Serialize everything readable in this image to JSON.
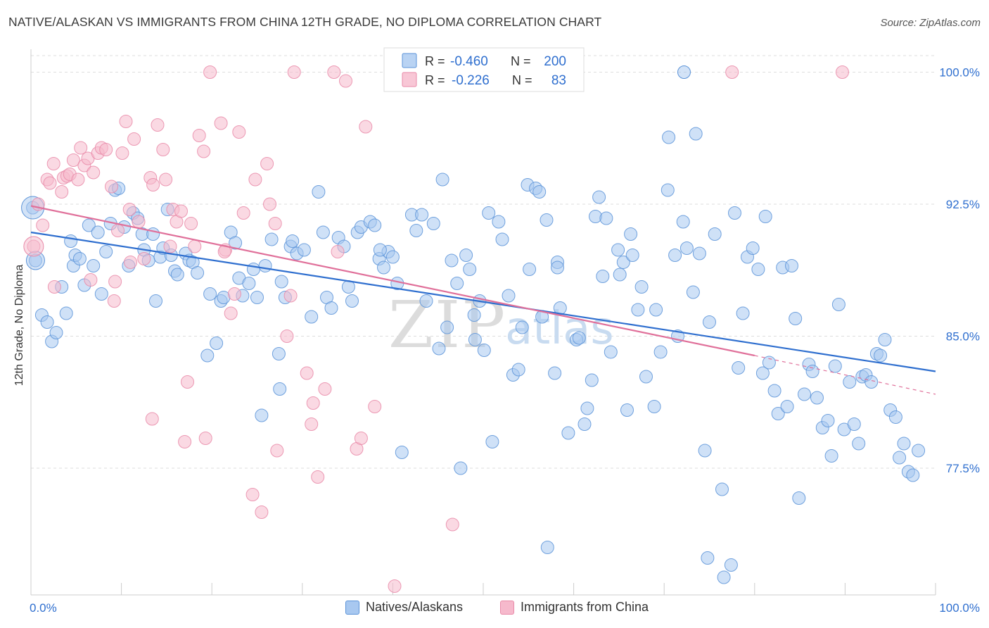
{
  "title": "NATIVE/ALASKAN VS IMMIGRANTS FROM CHINA 12TH GRADE, NO DIPLOMA CORRELATION CHART",
  "source": "Source: ZipAtlas.com",
  "watermark": {
    "zip": "ZIP",
    "atlas": "atlas"
  },
  "colors": {
    "blue_fill": "#a8c8f0",
    "blue_stroke": "#5b93d8",
    "blue_line": "#2f6fcf",
    "pink_fill": "#f6b9cc",
    "pink_stroke": "#e98aa8",
    "pink_line": "#e0709a",
    "value_text": "#2f6fcf",
    "grid": "#dddddd"
  },
  "legend_top": {
    "rows": [
      {
        "series": "Natives/Alaskans",
        "r_label": "R =",
        "r_value": "-0.460",
        "n_label": "N =",
        "n_value": "200"
      },
      {
        "series": "Immigrants from China",
        "r_label": "R =",
        "r_value": "-0.226",
        "n_label": "N =",
        "n_value": "83"
      }
    ]
  },
  "chart_data": {
    "type": "scatter",
    "title": "NATIVE/ALASKAN VS IMMIGRANTS FROM CHINA 12TH GRADE, NO DIPLOMA CORRELATION CHART",
    "xlabel": "",
    "ylabel": "12th Grade, No Diploma",
    "xlim": [
      0,
      100
    ],
    "ylim": [
      70.3,
      101.3
    ],
    "x_ticks": [
      "0.0%",
      "100.0%"
    ],
    "y_ticks": [
      {
        "value": 100.0,
        "label": "100.0%"
      },
      {
        "value": 92.5,
        "label": "92.5%"
      },
      {
        "value": 85.0,
        "label": "85.0%"
      },
      {
        "value": 77.5,
        "label": "77.5%"
      }
    ],
    "grid": true,
    "legend_position": "top-center",
    "series": [
      {
        "name": "Natives/Alaskans",
        "color": "#a8c8f0",
        "trend": {
          "x": [
            0,
            100
          ],
          "y": [
            90.9,
            83.0
          ]
        },
        "points": [
          [
            0.2,
            92.3
          ],
          [
            0.5,
            89.3
          ],
          [
            1.2,
            86.2
          ],
          [
            1.8,
            85.8
          ],
          [
            2.3,
            84.7
          ],
          [
            2.8,
            85.2
          ],
          [
            3.4,
            87.8
          ],
          [
            3.9,
            86.3
          ],
          [
            4.4,
            90.4
          ],
          [
            4.7,
            89.0
          ],
          [
            4.9,
            89.6
          ],
          [
            5.4,
            89.4
          ],
          [
            5.9,
            87.9
          ],
          [
            6.4,
            91.3
          ],
          [
            6.9,
            89.0
          ],
          [
            7.4,
            90.9
          ],
          [
            7.8,
            87.4
          ],
          [
            8.3,
            89.8
          ],
          [
            8.8,
            91.4
          ],
          [
            9.3,
            93.3
          ],
          [
            9.7,
            93.4
          ],
          [
            10.3,
            91.2
          ],
          [
            10.8,
            89.0
          ],
          [
            11.3,
            92.0
          ],
          [
            11.8,
            91.7
          ],
          [
            12.3,
            90.8
          ],
          [
            12.5,
            89.9
          ],
          [
            13.0,
            89.3
          ],
          [
            13.5,
            90.8
          ],
          [
            13.8,
            87.0
          ],
          [
            14.3,
            89.5
          ],
          [
            14.6,
            90.0
          ],
          [
            15.1,
            92.2
          ],
          [
            15.5,
            89.6
          ],
          [
            15.9,
            88.7
          ],
          [
            16.2,
            88.5
          ],
          [
            17.1,
            89.7
          ],
          [
            17.5,
            89.3
          ],
          [
            17.9,
            89.2
          ],
          [
            18.4,
            88.6
          ],
          [
            19.5,
            83.9
          ],
          [
            19.8,
            87.4
          ],
          [
            20.5,
            84.6
          ],
          [
            21.0,
            87.0
          ],
          [
            21.3,
            87.2
          ],
          [
            22.1,
            90.9
          ],
          [
            22.6,
            90.3
          ],
          [
            23.0,
            88.3
          ],
          [
            23.4,
            87.3
          ],
          [
            24.1,
            88.0
          ],
          [
            24.6,
            88.8
          ],
          [
            25.0,
            87.2
          ],
          [
            25.5,
            80.5
          ],
          [
            25.9,
            89.0
          ],
          [
            26.6,
            90.5
          ],
          [
            27.4,
            84.0
          ],
          [
            27.7,
            88.1
          ],
          [
            28.1,
            87.2
          ],
          [
            28.7,
            90.1
          ],
          [
            28.9,
            90.4
          ],
          [
            29.4,
            89.7
          ],
          [
            30.2,
            89.9
          ],
          [
            31.0,
            86.1
          ],
          [
            31.8,
            93.2
          ],
          [
            32.3,
            90.9
          ],
          [
            32.7,
            87.2
          ],
          [
            33.2,
            86.6
          ],
          [
            34.0,
            90.6
          ],
          [
            34.6,
            90.1
          ],
          [
            35.1,
            87.8
          ],
          [
            35.5,
            87.0
          ],
          [
            36.1,
            90.9
          ],
          [
            36.5,
            91.2
          ],
          [
            37.5,
            91.5
          ],
          [
            38.0,
            91.3
          ],
          [
            38.5,
            89.4
          ],
          [
            39.0,
            88.9
          ],
          [
            39.5,
            89.8
          ],
          [
            40.0,
            89.5
          ],
          [
            40.5,
            88.0
          ],
          [
            41.0,
            78.4
          ],
          [
            42.1,
            91.9
          ],
          [
            42.6,
            91.0
          ],
          [
            43.2,
            91.9
          ],
          [
            43.7,
            87.0
          ],
          [
            44.5,
            91.4
          ],
          [
            45.1,
            84.3
          ],
          [
            45.5,
            93.9
          ],
          [
            46.0,
            85.5
          ],
          [
            46.5,
            89.3
          ],
          [
            47.1,
            88.0
          ],
          [
            47.5,
            77.5
          ],
          [
            48.1,
            89.6
          ],
          [
            48.5,
            88.8
          ],
          [
            49.1,
            84.8
          ],
          [
            49.6,
            87.0
          ],
          [
            50.1,
            84.2
          ],
          [
            50.6,
            92.0
          ],
          [
            51.0,
            79.0
          ],
          [
            51.7,
            91.5
          ],
          [
            52.1,
            90.5
          ],
          [
            52.8,
            87.3
          ],
          [
            53.3,
            82.8
          ],
          [
            53.9,
            83.1
          ],
          [
            54.3,
            85.5
          ],
          [
            54.9,
            93.6
          ],
          [
            55.1,
            88.8
          ],
          [
            55.8,
            93.4
          ],
          [
            56.2,
            93.2
          ],
          [
            56.5,
            86.1
          ],
          [
            57.0,
            91.6
          ],
          [
            57.9,
            82.9
          ],
          [
            58.2,
            89.2
          ],
          [
            58.5,
            86.6
          ],
          [
            59.4,
            79.5
          ],
          [
            60.3,
            84.8
          ],
          [
            60.6,
            84.9
          ],
          [
            61.2,
            80.0
          ],
          [
            61.5,
            80.9
          ],
          [
            62.0,
            82.5
          ],
          [
            62.4,
            91.8
          ],
          [
            62.8,
            92.9
          ],
          [
            63.2,
            88.4
          ],
          [
            63.6,
            91.7
          ],
          [
            64.1,
            84.1
          ],
          [
            64.9,
            89.9
          ],
          [
            65.1,
            88.5
          ],
          [
            65.5,
            89.2
          ],
          [
            65.9,
            80.8
          ],
          [
            66.5,
            89.6
          ],
          [
            67.1,
            86.5
          ],
          [
            67.5,
            87.8
          ],
          [
            68.0,
            82.7
          ],
          [
            68.9,
            81.0
          ],
          [
            69.1,
            86.5
          ],
          [
            69.6,
            84.1
          ],
          [
            70.4,
            93.3
          ],
          [
            70.5,
            96.3
          ],
          [
            71.2,
            89.6
          ],
          [
            71.5,
            85.0
          ],
          [
            72.1,
            91.5
          ],
          [
            72.5,
            90.0
          ],
          [
            73.2,
            87.5
          ],
          [
            73.5,
            96.5
          ],
          [
            73.9,
            89.7
          ],
          [
            74.5,
            78.5
          ],
          [
            75.0,
            85.8
          ],
          [
            75.6,
            90.8
          ],
          [
            76.4,
            76.3
          ],
          [
            76.6,
            71.3
          ],
          [
            77.4,
            72.0
          ],
          [
            77.8,
            92.0
          ],
          [
            78.2,
            83.2
          ],
          [
            78.7,
            86.3
          ],
          [
            79.2,
            89.5
          ],
          [
            79.8,
            90.0
          ],
          [
            80.4,
            88.8
          ],
          [
            80.9,
            82.9
          ],
          [
            81.2,
            91.8
          ],
          [
            81.6,
            83.5
          ],
          [
            82.2,
            81.9
          ],
          [
            82.6,
            80.6
          ],
          [
            83.1,
            88.9
          ],
          [
            83.6,
            81.0
          ],
          [
            84.1,
            89.0
          ],
          [
            84.5,
            86.0
          ],
          [
            84.9,
            75.8
          ],
          [
            85.5,
            81.7
          ],
          [
            86.0,
            83.4
          ],
          [
            86.4,
            83.0
          ],
          [
            86.9,
            81.5
          ],
          [
            87.5,
            79.8
          ],
          [
            88.1,
            80.2
          ],
          [
            88.5,
            78.2
          ],
          [
            88.9,
            83.3
          ],
          [
            89.3,
            86.8
          ],
          [
            89.9,
            79.7
          ],
          [
            90.5,
            82.4
          ],
          [
            91.0,
            80.0
          ],
          [
            91.5,
            78.9
          ],
          [
            91.9,
            82.7
          ],
          [
            92.3,
            82.8
          ],
          [
            92.9,
            82.4
          ],
          [
            93.5,
            84.0
          ],
          [
            93.9,
            83.9
          ],
          [
            94.4,
            84.8
          ],
          [
            95.0,
            80.8
          ],
          [
            95.6,
            80.4
          ],
          [
            96.0,
            78.1
          ],
          [
            96.5,
            78.9
          ],
          [
            97.0,
            77.3
          ],
          [
            97.5,
            77.1
          ],
          [
            98.1,
            78.5
          ],
          [
            74.8,
            72.4
          ],
          [
            57.1,
            73.0
          ],
          [
            58.2,
            88.9
          ],
          [
            38.6,
            89.9
          ],
          [
            27.5,
            82.0
          ],
          [
            49.0,
            86.2
          ],
          [
            66.3,
            90.8
          ]
        ]
      },
      {
        "name": "Immigrants from China",
        "color": "#f6b9cc",
        "trend": {
          "x": [
            0,
            80
          ],
          "y": [
            92.4,
            83.9
          ]
        },
        "trend_dashed": {
          "x": [
            80,
            100
          ],
          "y": [
            83.9,
            81.7
          ]
        },
        "points": [
          [
            0.3,
            90.1
          ],
          [
            0.8,
            92.5
          ],
          [
            1.3,
            91.3
          ],
          [
            1.8,
            93.9
          ],
          [
            2.1,
            93.7
          ],
          [
            2.5,
            94.8
          ],
          [
            2.6,
            87.8
          ],
          [
            3.4,
            93.2
          ],
          [
            3.6,
            94.0
          ],
          [
            4.0,
            94.1
          ],
          [
            4.3,
            94.2
          ],
          [
            4.7,
            95.0
          ],
          [
            5.2,
            93.9
          ],
          [
            5.5,
            95.7
          ],
          [
            5.9,
            94.7
          ],
          [
            6.3,
            95.1
          ],
          [
            6.6,
            88.2
          ],
          [
            6.9,
            94.3
          ],
          [
            7.4,
            95.4
          ],
          [
            7.8,
            95.7
          ],
          [
            8.3,
            95.6
          ],
          [
            8.9,
            93.5
          ],
          [
            9.3,
            88.1
          ],
          [
            9.6,
            91.0
          ],
          [
            10.1,
            95.4
          ],
          [
            10.5,
            97.2
          ],
          [
            10.9,
            92.2
          ],
          [
            11.4,
            96.2
          ],
          [
            11.9,
            91.5
          ],
          [
            12.5,
            89.4
          ],
          [
            13.2,
            94.0
          ],
          [
            13.4,
            80.3
          ],
          [
            14.0,
            97.0
          ],
          [
            14.6,
            95.6
          ],
          [
            14.9,
            93.9
          ],
          [
            15.4,
            90.1
          ],
          [
            15.7,
            92.2
          ],
          [
            16.1,
            91.5
          ],
          [
            16.6,
            92.1
          ],
          [
            17.3,
            82.4
          ],
          [
            17.7,
            91.4
          ],
          [
            18.1,
            90.1
          ],
          [
            18.6,
            96.4
          ],
          [
            19.1,
            95.5
          ],
          [
            19.3,
            79.2
          ],
          [
            19.8,
            100.0
          ],
          [
            21.0,
            97.1
          ],
          [
            21.5,
            89.9
          ],
          [
            22.1,
            86.3
          ],
          [
            22.5,
            87.4
          ],
          [
            23.0,
            96.6
          ],
          [
            23.5,
            92.0
          ],
          [
            24.5,
            76.0
          ],
          [
            25.5,
            75.0
          ],
          [
            26.1,
            94.8
          ],
          [
            26.4,
            92.5
          ],
          [
            27.0,
            91.4
          ],
          [
            27.2,
            78.5
          ],
          [
            28.3,
            85.0
          ],
          [
            28.7,
            87.3
          ],
          [
            29.1,
            100.0
          ],
          [
            30.5,
            82.9
          ],
          [
            31.2,
            81.2
          ],
          [
            31.7,
            77.0
          ],
          [
            32.5,
            82.0
          ],
          [
            33.5,
            100.0
          ],
          [
            33.9,
            89.8
          ],
          [
            34.8,
            99.5
          ],
          [
            36.0,
            78.6
          ],
          [
            36.5,
            79.2
          ],
          [
            37.0,
            96.9
          ],
          [
            38.0,
            81.0
          ],
          [
            40.2,
            70.8
          ],
          [
            46.6,
            74.3
          ],
          [
            77.5,
            100.0
          ],
          [
            89.7,
            100.0
          ],
          [
            24.8,
            93.9
          ],
          [
            13.5,
            93.6
          ],
          [
            17.0,
            79.0
          ],
          [
            21.4,
            89.8
          ],
          [
            9.2,
            87.0
          ],
          [
            11.0,
            89.2
          ],
          [
            31.0,
            80.0
          ]
        ]
      }
    ]
  }
}
